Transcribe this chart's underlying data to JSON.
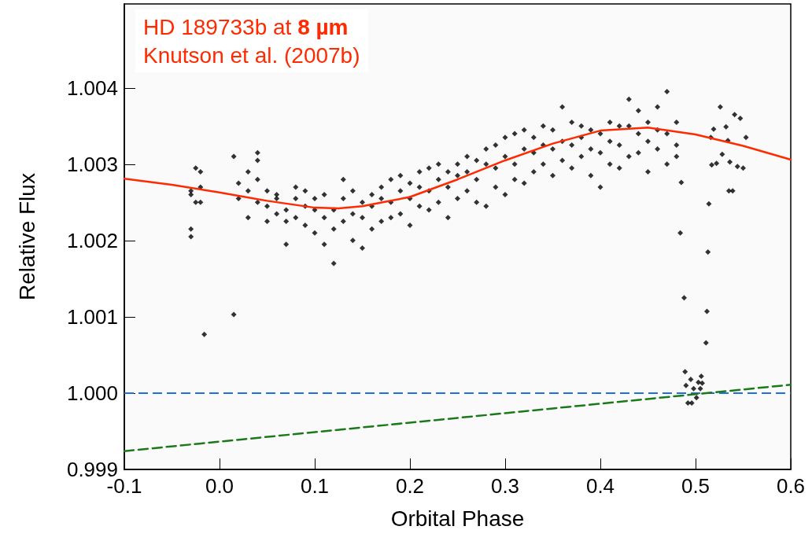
{
  "chart_data": {
    "type": "scatter",
    "title": "HD 189733b at 8 µm",
    "subtitle": "Knutson et al. (2007b)",
    "xlabel": "Orbital Phase",
    "ylabel": "Relative Flux",
    "xlim": [
      -0.1,
      0.6
    ],
    "xticks": [
      -0.1,
      {
        "value": 0,
        "label": "0.0"
      },
      0.1,
      0.2,
      0.3,
      0.4,
      0.5,
      0.6
    ],
    "ylim": [
      0.999,
      1.0051
    ],
    "yticks": [
      0.999,
      {
        "value": 1,
        "label": "1.000"
      },
      1.001,
      1.002,
      1.003,
      1.004
    ],
    "grid": false,
    "marker": "diamond",
    "ref_lines": [
      {
        "axis": "y",
        "value": 1,
        "color": "#1f6fe0",
        "line_style": "dashed"
      }
    ],
    "series": [
      {
        "color": "#000000",
        "x": [
          -0.03,
          -0.03,
          -0.03,
          -0.03,
          -0.025,
          -0.025,
          -0.02,
          -0.02,
          -0.02,
          -0.016,
          0.015,
          0.015,
          0.02,
          0.02,
          0.03,
          0.03,
          0.03,
          0.04,
          0.04,
          0.04,
          0.04,
          0.05,
          0.05,
          0.05,
          0.06,
          0.06,
          0.06,
          0.07,
          0.07,
          0.07,
          0.08,
          0.08,
          0.08,
          0.09,
          0.09,
          0.09,
          0.1,
          0.1,
          0.1,
          0.11,
          0.11,
          0.11,
          0.12,
          0.12,
          0.12,
          0.13,
          0.13,
          0.13,
          0.14,
          0.14,
          0.14,
          0.15,
          0.15,
          0.15,
          0.16,
          0.16,
          0.16,
          0.17,
          0.17,
          0.17,
          0.18,
          0.18,
          0.18,
          0.19,
          0.19,
          0.19,
          0.2,
          0.2,
          0.2,
          0.21,
          0.21,
          0.21,
          0.22,
          0.22,
          0.22,
          0.23,
          0.23,
          0.23,
          0.24,
          0.24,
          0.24,
          0.25,
          0.25,
          0.25,
          0.26,
          0.26,
          0.26,
          0.27,
          0.27,
          0.27,
          0.28,
          0.28,
          0.28,
          0.29,
          0.29,
          0.29,
          0.3,
          0.3,
          0.3,
          0.31,
          0.31,
          0.31,
          0.32,
          0.32,
          0.32,
          0.33,
          0.33,
          0.33,
          0.34,
          0.34,
          0.34,
          0.35,
          0.35,
          0.35,
          0.36,
          0.36,
          0.36,
          0.37,
          0.37,
          0.37,
          0.38,
          0.38,
          0.38,
          0.39,
          0.39,
          0.39,
          0.4,
          0.4,
          0.4,
          0.41,
          0.41,
          0.41,
          0.42,
          0.42,
          0.42,
          0.43,
          0.43,
          0.43,
          0.44,
          0.44,
          0.44,
          0.45,
          0.45,
          0.45,
          0.46,
          0.46,
          0.46,
          0.47,
          0.47,
          0.47,
          0.48,
          0.48,
          0.48,
          0.484,
          0.485,
          0.488,
          0.489,
          0.49,
          0.492,
          0.495,
          0.496,
          0.498,
          0.501,
          0.503,
          0.505,
          0.506,
          0.507,
          0.511,
          0.512,
          0.513,
          0.514,
          0.516,
          0.517,
          0.519,
          0.522,
          0.526,
          0.528,
          0.532,
          0.534,
          0.535,
          0.536,
          0.539,
          0.541,
          0.544,
          0.547,
          0.55,
          0.553
        ],
        "values": [
          1.00215,
          1.00205,
          1.0026,
          1.00265,
          1.00295,
          1.0025,
          1.0029,
          1.0027,
          1.0025,
          1.00077,
          1.00103,
          1.0031,
          1.00275,
          1.00255,
          1.00265,
          1.0023,
          1.0029,
          1.00315,
          1.00305,
          1.0028,
          1.0025,
          1.00265,
          1.00245,
          1.00225,
          1.00255,
          1.0026,
          1.00235,
          1.00195,
          1.0024,
          1.00225,
          1.0027,
          1.00255,
          1.0023,
          1.0022,
          1.00245,
          1.00265,
          1.0021,
          1.0024,
          1.00255,
          1.00195,
          1.0023,
          1.0026,
          1.0017,
          1.00215,
          1.0024,
          1.00225,
          1.00255,
          1.0028,
          1.002,
          1.00235,
          1.00265,
          1.0019,
          1.0023,
          1.0025,
          1.00215,
          1.00245,
          1.0026,
          1.00225,
          1.00255,
          1.0027,
          1.0023,
          1.0025,
          1.0028,
          1.00235,
          1.00265,
          1.00285,
          1.0022,
          1.00255,
          1.00275,
          1.00245,
          1.0027,
          1.0029,
          1.0024,
          1.00265,
          1.00295,
          1.0025,
          1.0028,
          1.003,
          1.0023,
          1.0027,
          1.0029,
          1.00255,
          1.00285,
          1.003,
          1.00265,
          1.0029,
          1.0031,
          1.0025,
          1.0028,
          1.00305,
          1.00245,
          1.003,
          1.0032,
          1.0027,
          1.00295,
          1.00325,
          1.0026,
          1.0031,
          1.00335,
          1.0028,
          1.003,
          1.0034,
          1.00275,
          1.0032,
          1.00345,
          1.0029,
          1.00315,
          1.00335,
          1.003,
          1.00325,
          1.0035,
          1.00285,
          1.0032,
          1.00345,
          1.00305,
          1.0033,
          1.00375,
          1.00295,
          1.00325,
          1.00355,
          1.0031,
          1.00335,
          1.0035,
          1.00285,
          1.0032,
          1.00345,
          1.0027,
          1.00315,
          1.0034,
          1.003,
          1.0033,
          1.00355,
          1.00295,
          1.00325,
          1.0035,
          1.0031,
          1.0035,
          1.00385,
          1.00315,
          1.0034,
          1.0037,
          1.0029,
          1.0033,
          1.00355,
          1.0032,
          1.00345,
          1.00375,
          1.003,
          1.0034,
          1.00395,
          1.0031,
          1.00325,
          1.00355,
          1.0021,
          1.00276,
          1.00125,
          1.00028,
          1.0001,
          0.99987,
          1.00018,
          0.99987,
          1.00006,
          0.99994,
          1.00014,
          1.00006,
          1.00022,
          1.00013,
          1.00066,
          1.00107,
          1.00185,
          1.00248,
          1.00335,
          1.00299,
          1.00346,
          1.00301,
          1.00375,
          1.00313,
          1.00349,
          1.00331,
          1.00265,
          1.00303,
          1.00265,
          1.00365,
          1.00297,
          1.0036,
          1.00295,
          1.00335
        ]
      },
      {
        "type": "line",
        "color": "#ff2a00",
        "marker": "none",
        "line_style": "solid",
        "x": [
          -0.1,
          -0.05,
          0,
          0.05,
          0.1,
          0.125,
          0.15,
          0.2,
          0.25,
          0.3,
          0.35,
          0.4,
          0.45,
          0.5,
          0.55,
          0.6
        ],
        "values": [
          1.00281,
          1.00273,
          1.00263,
          1.00252,
          1.00243,
          1.00242,
          1.00245,
          1.00257,
          1.0028,
          1.00305,
          1.00327,
          1.00344,
          1.00348,
          1.00339,
          1.00324,
          1.00306
        ]
      },
      {
        "type": "line",
        "color": "#1a7a1a",
        "marker": "none",
        "line_style": "dashed",
        "x": [
          -0.1,
          0.6
        ],
        "values": [
          0.99924,
          1.00011
        ]
      }
    ]
  }
}
